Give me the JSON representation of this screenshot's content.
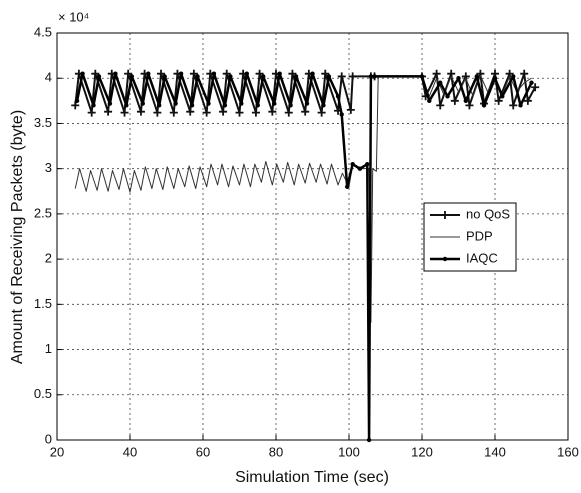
{
  "chart_data": {
    "type": "line",
    "x_label": "Simulation Time (sec)",
    "y_label": "Amount of Receiving Packets (byte)",
    "y_multiplier": "× 10⁴",
    "xlim": [
      20,
      160
    ],
    "xticks": [
      20,
      40,
      60,
      80,
      100,
      120,
      140,
      160
    ],
    "ylim": [
      0,
      4.5
    ],
    "yticks": [
      0,
      0.5,
      1,
      1.5,
      2,
      2.5,
      3,
      3.5,
      4,
      4.5
    ],
    "grid": true,
    "legend": "right",
    "series": [
      {
        "name": "no QoS",
        "color": "#111111",
        "marker": "plus",
        "line_width": 2,
        "x": [
          25,
          26,
          29.5,
          30.5,
          34,
          35,
          38.5,
          39.5,
          43,
          44,
          47.5,
          48.5,
          52,
          53,
          56.5,
          57.5,
          61,
          62,
          65.5,
          66.5,
          70,
          71,
          74.5,
          75.5,
          79,
          80,
          83.5,
          84.5,
          88,
          89,
          92.5,
          93.5,
          97,
          98,
          100.5,
          101,
          106,
          107,
          120,
          121,
          124,
          125,
          128,
          129,
          132,
          133,
          136,
          137,
          140,
          141,
          144,
          145,
          148,
          149,
          151
        ],
        "values": [
          3.7,
          4.05,
          3.62,
          4.05,
          3.63,
          4.05,
          3.62,
          4.05,
          3.63,
          4.05,
          3.62,
          4.05,
          3.62,
          4.05,
          3.63,
          4.05,
          3.62,
          4.05,
          3.63,
          4.05,
          3.62,
          4.05,
          3.62,
          4.05,
          3.63,
          4.05,
          3.62,
          4.05,
          3.63,
          4.05,
          3.62,
          4.05,
          3.64,
          4.02,
          3.65,
          4.02,
          4.02,
          4.02,
          4.02,
          3.8,
          4.05,
          3.7,
          4.05,
          3.75,
          4.02,
          3.7,
          4.05,
          3.72,
          4.05,
          3.75,
          4.05,
          3.7,
          4.05,
          3.75,
          3.9
        ]
      },
      {
        "name": "PDP",
        "color": "#333333",
        "marker": "none",
        "line_width": 1,
        "x": [
          25,
          26.2,
          28,
          29.2,
          31,
          32.2,
          34,
          35.2,
          37,
          38.2,
          40,
          41.2,
          43,
          44.2,
          46,
          47.2,
          49,
          50.2,
          52,
          53.2,
          55,
          56.2,
          58,
          59.2,
          61,
          62.2,
          64,
          65.2,
          67,
          68.2,
          70,
          71.2,
          73,
          74.2,
          76,
          77.2,
          79,
          80.2,
          82,
          83.2,
          85,
          86.2,
          88,
          89.2,
          91,
          92.2,
          94,
          95.2,
          97,
          98.2,
          100,
          101,
          103,
          105.5,
          106,
          106.5,
          107.5,
          108,
          120,
          122,
          124,
          126,
          128,
          130,
          132,
          134,
          136,
          138,
          140,
          142,
          144,
          146,
          148,
          150
        ],
        "values": [
          2.78,
          3.0,
          2.75,
          2.98,
          2.76,
          3.0,
          2.75,
          2.98,
          2.77,
          3.0,
          2.74,
          2.98,
          2.76,
          3.02,
          2.78,
          3.0,
          2.77,
          3.02,
          2.78,
          3.0,
          2.8,
          3.03,
          2.78,
          3.02,
          2.8,
          3.05,
          2.82,
          3.05,
          2.8,
          3.03,
          2.82,
          3.05,
          2.8,
          3.05,
          2.85,
          3.08,
          2.82,
          3.05,
          2.85,
          3.07,
          2.82,
          3.05,
          2.84,
          3.06,
          2.85,
          3.05,
          2.83,
          3.05,
          2.82,
          2.95,
          2.8,
          3.05,
          3.0,
          3.0,
          1.3,
          3.0,
          2.97,
          4.02,
          4.02,
          3.8,
          4.0,
          3.82,
          4.02,
          3.85,
          4.0,
          3.8,
          4.03,
          3.85,
          4.0,
          3.82,
          4.02,
          3.85,
          3.95,
          4.0
        ]
      },
      {
        "name": "IAQC",
        "color": "#000000",
        "marker": "dot",
        "line_width": 2.5,
        "x": [
          25.5,
          27,
          30,
          31.5,
          34.5,
          36,
          39,
          40.5,
          43.5,
          45,
          48,
          49.5,
          52.5,
          54,
          57,
          58.5,
          61.5,
          63,
          66,
          67.5,
          70.5,
          72,
          75,
          76.5,
          79.5,
          81,
          84,
          85.5,
          88.5,
          90,
          93,
          94.5,
          97,
          98,
          99.5,
          101,
          103,
          105,
          105.5,
          106,
          107,
          120,
          122,
          125,
          127,
          130,
          132,
          135,
          137,
          140,
          142,
          145,
          147,
          150
        ],
        "values": [
          3.75,
          4.05,
          3.7,
          4.02,
          3.72,
          4.05,
          3.7,
          4.02,
          3.72,
          4.05,
          3.7,
          4.02,
          3.72,
          4.05,
          3.7,
          4.02,
          3.72,
          4.05,
          3.7,
          4.02,
          3.72,
          4.05,
          3.7,
          4.02,
          3.72,
          4.05,
          3.7,
          4.02,
          3.72,
          4.05,
          3.7,
          4.02,
          3.8,
          3.6,
          2.8,
          3.05,
          3.0,
          3.05,
          0,
          4.02,
          4.02,
          4.02,
          3.75,
          3.95,
          3.8,
          4.0,
          3.75,
          4.02,
          3.7,
          4.0,
          3.8,
          4.02,
          3.7,
          3.95
        ]
      }
    ]
  }
}
